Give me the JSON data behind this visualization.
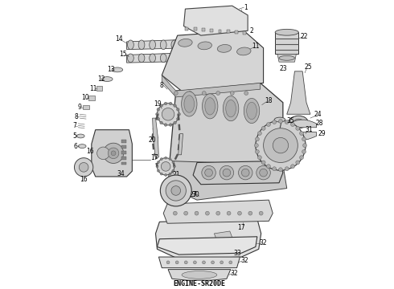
{
  "caption": "ENGINE-SR20DE",
  "bg_color": "#ffffff",
  "fig_width": 4.9,
  "fig_height": 3.6,
  "dpi": 100,
  "caption_fontsize": 6,
  "caption_color": "#000000",
  "caption_weight": "bold",
  "line_color": "#444444",
  "light_gray": "#cccccc",
  "mid_gray": "#999999",
  "dark_gray": "#555555",
  "very_light": "#eeeeee"
}
